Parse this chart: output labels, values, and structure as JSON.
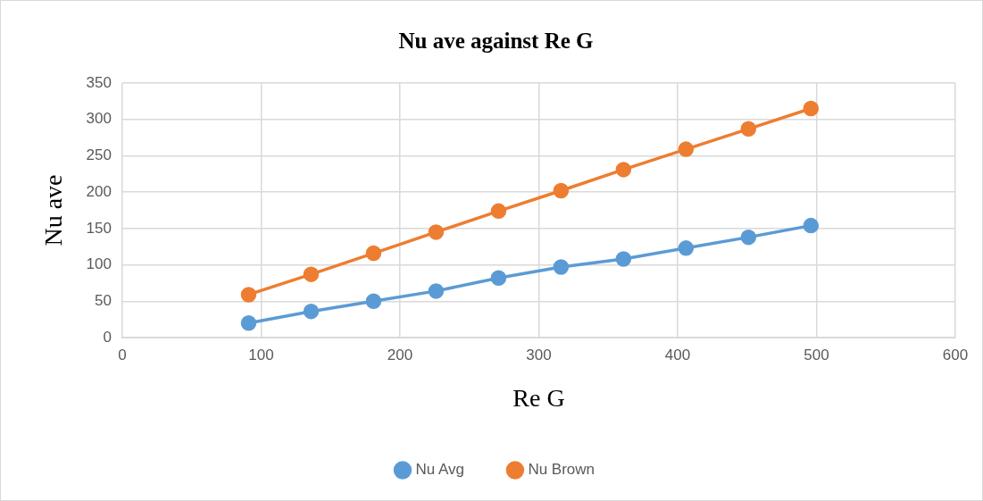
{
  "chart_data": {
    "type": "line",
    "title": "Nu ave against Re G",
    "xlabel": "Re G",
    "ylabel": "Nu ave",
    "x": [
      91,
      136,
      181,
      226,
      271,
      316,
      361,
      406,
      451,
      496
    ],
    "series": [
      {
        "name": "Nu Avg",
        "color": "#5b9bd5",
        "values": [
          20,
          36,
          50,
          64,
          82,
          97,
          108,
          123,
          138,
          154
        ]
      },
      {
        "name": "Nu Brown",
        "color": "#ed7d31",
        "values": [
          59,
          87,
          116,
          145,
          174,
          202,
          231,
          259,
          287,
          315
        ]
      }
    ],
    "xlim": [
      0,
      600
    ],
    "xticks": [
      0,
      100,
      200,
      300,
      400,
      500,
      600
    ],
    "ylim": [
      0,
      350
    ],
    "yticks": [
      0,
      50,
      100,
      150,
      200,
      250,
      300,
      350
    ],
    "grid": true,
    "legend": "bottom",
    "marker": "circle",
    "line_style": "solid"
  }
}
